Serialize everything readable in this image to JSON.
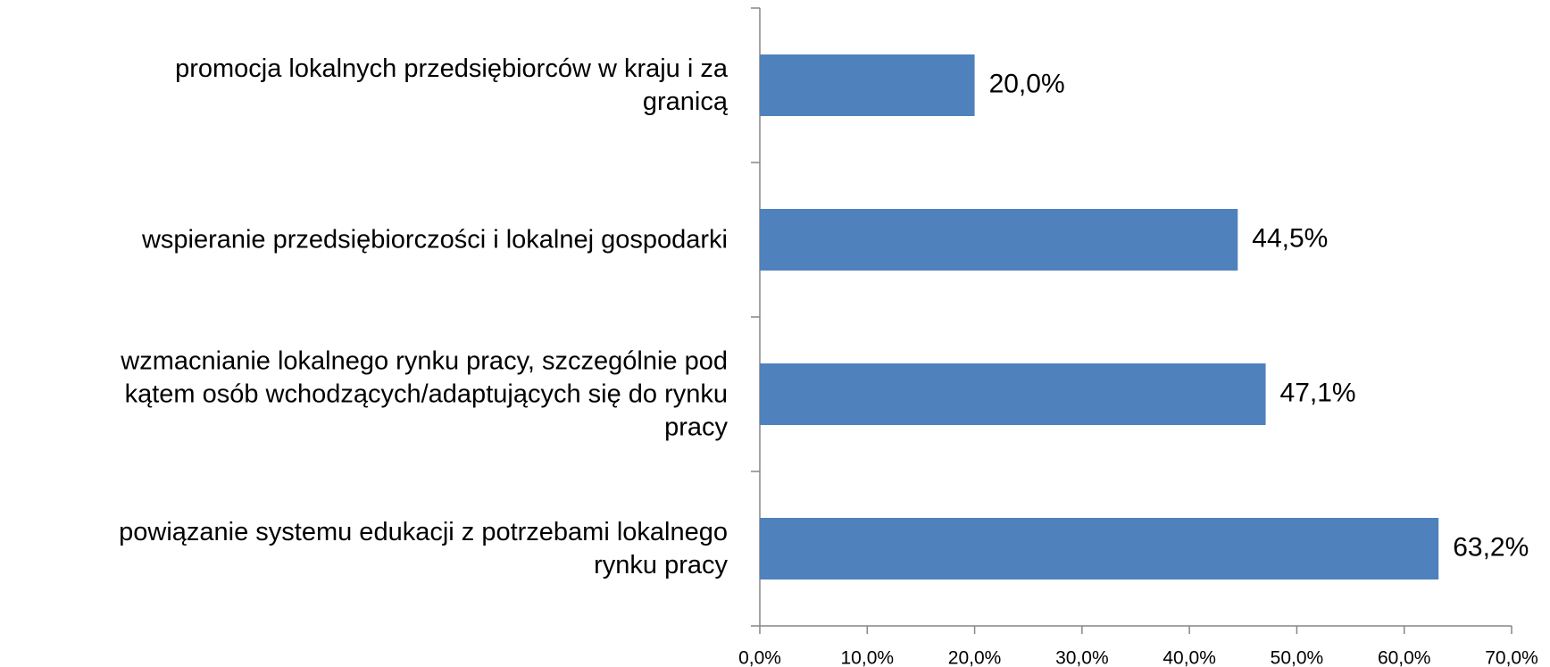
{
  "chart_data": {
    "type": "barh",
    "categories": [
      "promocja lokalnych przedsiębiorców w kraju i za\ngranicą",
      "wspieranie przedsiębiorczości i lokalnej gospodarki",
      "wzmacnianie lokalnego rynku pracy, szczególnie pod\nkątem osób wchodzących/adaptujących się do rynku\npracy",
      "powiązanie systemu edukacji z potrzebami lokalnego\nrynku pracy"
    ],
    "values": [
      20.0,
      44.5,
      47.1,
      63.2
    ],
    "value_labels": [
      "20,0%",
      "44,5%",
      "47,1%",
      "63,2%"
    ],
    "color": "#4f81bd",
    "xlim": [
      0,
      70
    ],
    "xticks": [
      {
        "value": 0,
        "label": "0,0%"
      },
      {
        "value": 10,
        "label": "10,0%"
      },
      {
        "value": 20,
        "label": "20,0%"
      },
      {
        "value": 30,
        "label": "30,0%"
      },
      {
        "value": 40,
        "label": "40,0%"
      },
      {
        "value": 50,
        "label": "50,0%"
      },
      {
        "value": 60,
        "label": "60,0%"
      },
      {
        "value": 70,
        "label": "70,0%"
      }
    ]
  }
}
